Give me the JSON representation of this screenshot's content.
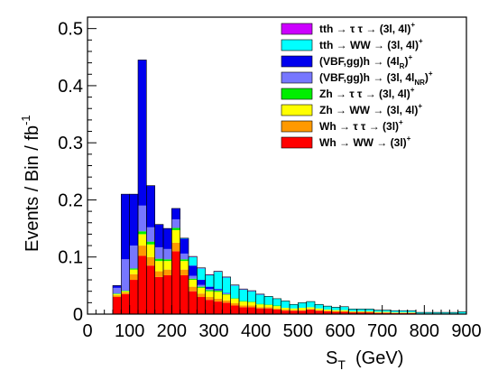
{
  "chart_data": {
    "type": "bar",
    "stacked": true,
    "bin_width": 20,
    "x_bin_starts": [
      60,
      80,
      100,
      120,
      140,
      160,
      180,
      200,
      220,
      240,
      260,
      280,
      300,
      320,
      340,
      360,
      380,
      400,
      420,
      440,
      460,
      480,
      500,
      520,
      540,
      560,
      580,
      600,
      620,
      640,
      660,
      680,
      700,
      720,
      740,
      760,
      780,
      800,
      820,
      840,
      860,
      880
    ],
    "xlim": [
      0,
      900
    ],
    "ylim": [
      0,
      0.52
    ],
    "xticks": [
      0,
      100,
      200,
      300,
      400,
      500,
      600,
      700,
      800,
      900
    ],
    "xtick_labels": [
      "0",
      "100",
      "200",
      "300",
      "400",
      "500",
      "600",
      "700",
      "800",
      "900"
    ],
    "yticks": [
      0,
      0.1,
      0.2,
      0.3,
      0.4,
      0.5
    ],
    "ytick_labels": [
      "0",
      "0.1",
      "0.2",
      "0.3",
      "0.4",
      "0.5"
    ],
    "xlabel_main": "S",
    "xlabel_sub": "T",
    "xlabel_rest": "  (GeV)",
    "ylabel_main": "Events / Bin / fb",
    "ylabel_sup": "-1",
    "legend_position": "top-right",
    "series": [
      {
        "name": "Wh → WW → (3l)",
        "name_sup": "+",
        "color": "#ff0000",
        "values": [
          0.03,
          0.035,
          0.06,
          0.102,
          0.085,
          0.065,
          0.068,
          0.11,
          0.068,
          0.04,
          0.03,
          0.025,
          0.022,
          0.02,
          0.015,
          0.012,
          0.012,
          0.01,
          0.01,
          0.008,
          0.006,
          0.006,
          0.006,
          0.008,
          0.006,
          0.005,
          0.004,
          0.004,
          0.003,
          0.003,
          0.003,
          0.002,
          0.002,
          0.002,
          0.002,
          0.002,
          0.001,
          0.001,
          0.001,
          0.001,
          0.001,
          0.001
        ]
      },
      {
        "name": "Wh → τ τ → (3l)",
        "name_sup": "+",
        "color": "#ff9900",
        "values": [
          0.003,
          0.003,
          0.01,
          0.018,
          0.015,
          0.01,
          0.01,
          0.015,
          0.01,
          0.008,
          0.006,
          0.005,
          0.005,
          0.004,
          0.004,
          0.003,
          0.003,
          0.002,
          0.002,
          0.002,
          0.002,
          0.001,
          0.001,
          0.001,
          0.001,
          0.001,
          0.001,
          0.001,
          0.001,
          0.001,
          0.001,
          0.001,
          0.001,
          0.0,
          0.0,
          0.0,
          0.0,
          0.0,
          0.0,
          0.0,
          0.0,
          0.0
        ]
      },
      {
        "name": "Zh → WW → (3l, 4l)",
        "name_sup": "+",
        "color": "#ffff00",
        "values": [
          0.002,
          0.002,
          0.008,
          0.02,
          0.022,
          0.018,
          0.015,
          0.022,
          0.015,
          0.012,
          0.01,
          0.01,
          0.012,
          0.01,
          0.008,
          0.007,
          0.006,
          0.005,
          0.004,
          0.004,
          0.003,
          0.003,
          0.004,
          0.003,
          0.003,
          0.002,
          0.002,
          0.002,
          0.001,
          0.001,
          0.001,
          0.001,
          0.001,
          0.001,
          0.001,
          0.001,
          0.0,
          0.0,
          0.0,
          0.0,
          0.0,
          0.0
        ]
      },
      {
        "name": "Zh → τ τ → (3l, 4l)",
        "name_sup": "+",
        "color": "#00ee00",
        "values": [
          0.001,
          0.001,
          0.002,
          0.005,
          0.005,
          0.004,
          0.003,
          0.004,
          0.003,
          0.002,
          0.002,
          0.002,
          0.002,
          0.001,
          0.001,
          0.001,
          0.001,
          0.001,
          0.001,
          0.001,
          0.0,
          0.0,
          0.0,
          0.0,
          0.0,
          0.0,
          0.0,
          0.0,
          0.0,
          0.0,
          0.0,
          0.0,
          0.0,
          0.0,
          0.0,
          0.0,
          0.0,
          0.0,
          0.0,
          0.0,
          0.0,
          0.0
        ]
      },
      {
        "name": "(VBF,gg)h → (3l, 4l",
        "name_sub": "NR",
        "name_tail": ")",
        "name_sup": "+",
        "color": "#7777ff",
        "values": [
          0.01,
          0.055,
          0.04,
          0.045,
          0.025,
          0.02,
          0.018,
          0.015,
          0.01,
          0.005,
          0.003,
          0.002,
          0.001,
          0.001,
          0.0,
          0.0,
          0.0,
          0.0,
          0.0,
          0.0,
          0.0,
          0.0,
          0.0,
          0.0,
          0.0,
          0.0,
          0.0,
          0.0,
          0.0,
          0.0,
          0.0,
          0.0,
          0.0,
          0.0,
          0.0,
          0.0,
          0.0,
          0.0,
          0.0,
          0.0,
          0.0,
          0.0
        ]
      },
      {
        "name": "(VBF,gg)h → (4l",
        "name_sub": "R",
        "name_tail": ")",
        "name_sup": "+",
        "color": "#0000ee",
        "values": [
          0.004,
          0.114,
          0.09,
          0.255,
          0.073,
          0.04,
          0.036,
          0.019,
          0.026,
          0.018,
          0.009,
          0.004,
          0.002,
          0.001,
          0.0,
          0.0,
          0.0,
          0.0,
          0.0,
          0.0,
          0.0,
          0.0,
          0.0,
          0.0,
          0.0,
          0.0,
          0.0,
          0.0,
          0.0,
          0.0,
          0.0,
          0.0,
          0.0,
          0.0,
          0.0,
          0.0,
          0.0,
          0.0,
          0.0,
          0.0,
          0.0,
          0.0
        ]
      },
      {
        "name": "tth → WW → (3l, 4l)",
        "name_sup": "+",
        "color": "#00ffff",
        "values": [
          0.0,
          0.0,
          0.0,
          0.0,
          0.0,
          0.0,
          0.0,
          0.0,
          0.001,
          0.015,
          0.02,
          0.02,
          0.03,
          0.027,
          0.022,
          0.02,
          0.018,
          0.016,
          0.014,
          0.012,
          0.012,
          0.007,
          0.009,
          0.01,
          0.007,
          0.006,
          0.005,
          0.006,
          0.004,
          0.004,
          0.004,
          0.003,
          0.003,
          0.003,
          0.003,
          0.003,
          0.002,
          0.002,
          0.002,
          0.002,
          0.002,
          0.003
        ]
      },
      {
        "name": "tth → τ τ → (3l, 4l)",
        "name_sup": "+",
        "color": "#cc00ff",
        "values": [
          0.0,
          0.0,
          0.0,
          0.0,
          0.0,
          0.0,
          0.0,
          0.0,
          0.0,
          0.001,
          0.001,
          0.001,
          0.001,
          0.001,
          0.001,
          0.001,
          0.001,
          0.001,
          0.0,
          0.0,
          0.0,
          0.0,
          0.0,
          0.0,
          0.0,
          0.0,
          0.0,
          0.0,
          0.0,
          0.0,
          0.0,
          0.0,
          0.0,
          0.0,
          0.0,
          0.0,
          0.0,
          0.0,
          0.0,
          0.0,
          0.0,
          0.0
        ]
      }
    ]
  }
}
